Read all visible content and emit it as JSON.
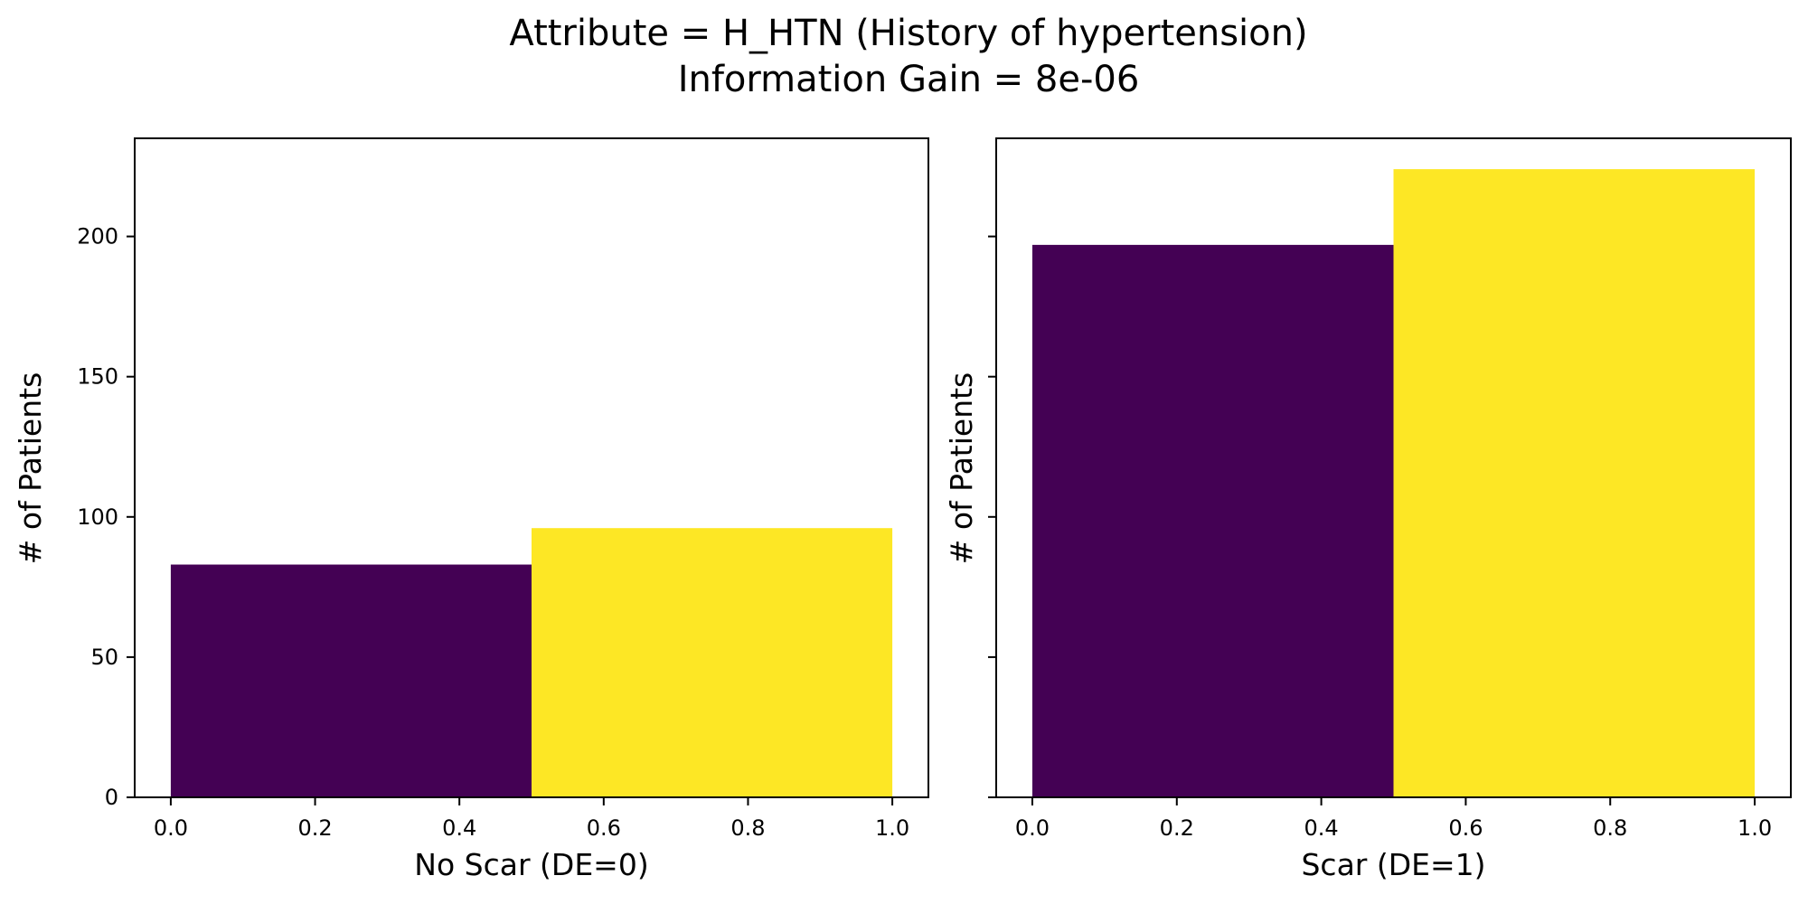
{
  "figure": {
    "title_line1": "Attribute = H_HTN (History of hypertension)",
    "title_line2": "Information Gain = 8e-06"
  },
  "colors": {
    "bar_dark": "#440154",
    "bar_light": "#fde725",
    "axes": "#000000",
    "background": "#ffffff"
  },
  "chart_data": [
    {
      "type": "bar",
      "xlabel": "No Scar (DE=0)",
      "ylabel": "# of Patients",
      "xlim": [
        -0.05,
        1.05
      ],
      "ylim": [
        0,
        235
      ],
      "xticks": [
        0.0,
        0.2,
        0.4,
        0.6,
        0.8,
        1.0
      ],
      "xtick_labels": [
        "0.0",
        "0.2",
        "0.4",
        "0.6",
        "0.8",
        "1.0"
      ],
      "yticks": [
        0,
        50,
        100,
        150,
        200
      ],
      "ytick_labels": [
        "0",
        "50",
        "100",
        "150",
        "200"
      ],
      "show_ytick_labels": true,
      "grid": false,
      "bars": [
        {
          "x0": 0.0,
          "x1": 0.5,
          "value": 83,
          "color": "#440154"
        },
        {
          "x0": 0.5,
          "x1": 1.0,
          "value": 96,
          "color": "#fde725"
        }
      ]
    },
    {
      "type": "bar",
      "xlabel": "Scar (DE=1)",
      "ylabel": "# of Patients",
      "xlim": [
        -0.05,
        1.05
      ],
      "ylim": [
        0,
        235
      ],
      "xticks": [
        0.0,
        0.2,
        0.4,
        0.6,
        0.8,
        1.0
      ],
      "xtick_labels": [
        "0.0",
        "0.2",
        "0.4",
        "0.6",
        "0.8",
        "1.0"
      ],
      "yticks": [
        0,
        50,
        100,
        150,
        200
      ],
      "ytick_labels": [
        "",
        "",
        "",
        "",
        ""
      ],
      "show_ytick_labels": false,
      "grid": false,
      "bars": [
        {
          "x0": 0.0,
          "x1": 0.5,
          "value": 197,
          "color": "#440154"
        },
        {
          "x0": 0.5,
          "x1": 1.0,
          "value": 224,
          "color": "#fde725"
        }
      ]
    }
  ]
}
